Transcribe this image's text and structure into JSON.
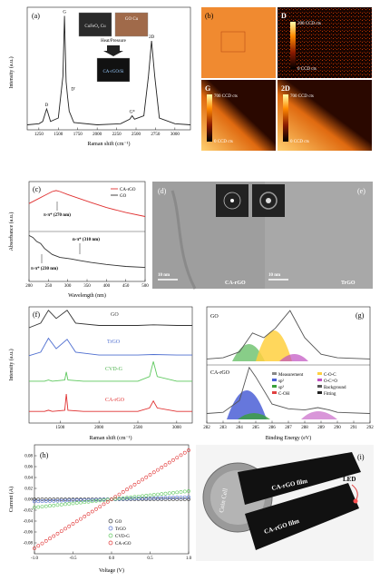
{
  "colors": {
    "cargo": "#e03030",
    "go": "#333333",
    "trgo": "#4f6fd0",
    "cvdg": "#5ec85e",
    "ink": "#222222"
  },
  "panel_a": {
    "letter": "(a)",
    "ylabel": "Intensity (a.u.)",
    "xlabel": "Raman shift (cm⁻¹)",
    "peaks": [
      {
        "label": "D",
        "x": 1350
      },
      {
        "label": "G",
        "x": 1580
      },
      {
        "label": "D'",
        "x": 1620
      },
      {
        "label": "G*",
        "x": 2450
      },
      {
        "label": "2D",
        "x": 2700
      }
    ],
    "inset": {
      "left_label": "CuFeO₂ Cu",
      "right_label": "GO Cu",
      "arrow_label": "Heat/Pressure",
      "result_label": "CA-rGO/Si"
    }
  },
  "panel_b": {
    "letter": "(b)",
    "maps": [
      {
        "label": "D",
        "scale_max": "200 CCD cts",
        "scale_min": "0 CCD cts"
      },
      {
        "label": "G",
        "scale_max": "700 CCD cts",
        "scale_min": "0 CCD cts"
      },
      {
        "label": "2D",
        "scale_max": "700 CCD cts",
        "scale_min": "0 CCD cts"
      }
    ]
  },
  "panel_c": {
    "letter": "(c)",
    "ylabel": "Absorbance (a.u.)",
    "xlabel": "Wavelength (nm)",
    "annotations": {
      "cargo_peak": "π-π* (270 nm)",
      "go_peak1": "n-π* (310 nm)",
      "go_peak2": "π-π* (230 nm)"
    }
  },
  "panel_de": {
    "d_letter": "(d)",
    "e_letter": "(e)",
    "d_scale": "10 nm",
    "e_scale": "10 nm",
    "d_label": "CA-rGO",
    "e_label": "TrGO"
  },
  "panel_f": {
    "letter": "(f)",
    "ylabel": "Intensity (a.u.)",
    "xlabel": "Raman shift (cm⁻¹)"
  },
  "panel_g": {
    "letter": "(g)",
    "xlabel": "Binding Energy (eV)",
    "top_label": "GO",
    "bottom_label": "CA-rGO",
    "legend": [
      "Measurement",
      "sp²",
      "sp³",
      "C-OH",
      "C-O-C",
      "O-C=O",
      "Background",
      "Fitting"
    ]
  },
  "panel_h": {
    "letter": "(h)"
  },
  "panel_i": {
    "letter": "(i)",
    "coin_label": "Coin Cell",
    "film_top": "CA-rGO film",
    "film_bottom": "CA-rGO film",
    "led_label": "LED"
  },
  "chart_data": [
    {
      "type": "line",
      "panel": "a",
      "xlabel": "Raman shift (cm⁻¹)",
      "ylabel": "Intensity (a.u.)",
      "xlim": [
        1100,
        3200
      ],
      "xticks": [
        1250,
        1500,
        1750,
        2000,
        2250,
        2500,
        2750,
        3000
      ],
      "series": [
        {
          "name": "",
          "x": [
            1100,
            1250,
            1300,
            1340,
            1350,
            1360,
            1400,
            1500,
            1560,
            1580,
            1600,
            1620,
            1640,
            1700,
            2000,
            2300,
            2420,
            2450,
            2480,
            2600,
            2660,
            2700,
            2740,
            2800,
            3000,
            3200
          ],
          "y": [
            0.02,
            0.03,
            0.05,
            0.14,
            0.16,
            0.14,
            0.05,
            0.08,
            0.45,
            0.98,
            0.4,
            0.26,
            0.14,
            0.04,
            0.02,
            0.03,
            0.07,
            0.1,
            0.07,
            0.1,
            0.45,
            0.76,
            0.45,
            0.08,
            0.03,
            0.02
          ]
        }
      ]
    },
    {
      "type": "line",
      "panel": "c",
      "xlabel": "Wavelength (nm)",
      "ylabel": "Absorbance (a.u.)",
      "xlim": [
        200,
        500
      ],
      "xticks": [
        200,
        250,
        300,
        350,
        400,
        450,
        500
      ],
      "series": [
        {
          "name": "CA-rGO",
          "x": [
            200,
            220,
            240,
            260,
            270,
            280,
            300,
            330,
            360,
            400,
            450,
            500
          ],
          "y": [
            0.78,
            0.82,
            0.86,
            0.9,
            0.91,
            0.9,
            0.87,
            0.83,
            0.79,
            0.74,
            0.69,
            0.65
          ]
        },
        {
          "name": "GO",
          "x": [
            200,
            210,
            220,
            230,
            240,
            260,
            280,
            300,
            310,
            330,
            360,
            400,
            450,
            500
          ],
          "y": [
            0.46,
            0.44,
            0.4,
            0.38,
            0.33,
            0.27,
            0.24,
            0.23,
            0.225,
            0.21,
            0.19,
            0.17,
            0.15,
            0.14
          ]
        }
      ]
    },
    {
      "type": "line",
      "panel": "f",
      "xlabel": "Raman shift (cm⁻¹)",
      "ylabel": "Intensity (a.u.)",
      "xlim": [
        1100,
        3200
      ],
      "xticks": [
        1500,
        2000,
        2500,
        3000
      ],
      "series": [
        {
          "name": "GO",
          "x": [
            1100,
            1250,
            1350,
            1450,
            1590,
            1700,
            2000,
            2500,
            2700,
            3000,
            3200
          ],
          "y": [
            0.82,
            0.86,
            0.97,
            0.9,
            0.97,
            0.86,
            0.84,
            0.84,
            0.845,
            0.84,
            0.84
          ]
        },
        {
          "name": "TrGO",
          "x": [
            1100,
            1250,
            1350,
            1450,
            1590,
            1700,
            2000,
            2500,
            2700,
            3000,
            3200
          ],
          "y": [
            0.58,
            0.61,
            0.73,
            0.64,
            0.72,
            0.61,
            0.585,
            0.585,
            0.59,
            0.585,
            0.585
          ]
        },
        {
          "name": "CVD-G",
          "x": [
            1100,
            1300,
            1350,
            1400,
            1560,
            1580,
            1600,
            1800,
            2500,
            2650,
            2700,
            2750,
            3000,
            3200
          ],
          "y": [
            0.36,
            0.36,
            0.37,
            0.36,
            0.37,
            0.44,
            0.37,
            0.36,
            0.36,
            0.4,
            0.53,
            0.4,
            0.36,
            0.36
          ]
        },
        {
          "name": "CA-rGO",
          "x": [
            1100,
            1300,
            1350,
            1400,
            1560,
            1580,
            1600,
            1800,
            2500,
            2650,
            2700,
            2750,
            3000,
            3200
          ],
          "y": [
            0.1,
            0.1,
            0.11,
            0.1,
            0.11,
            0.25,
            0.11,
            0.1,
            0.1,
            0.13,
            0.19,
            0.13,
            0.1,
            0.1
          ]
        }
      ]
    },
    {
      "type": "line",
      "panel": "g",
      "xlabel": "Binding Energy (eV)",
      "xlim": [
        282,
        292
      ],
      "xticks": [
        282,
        283,
        284,
        285,
        286,
        287,
        288,
        289,
        290,
        291,
        292
      ],
      "series": [
        {
          "name": "GO",
          "x": [
            282,
            283,
            284,
            284.8,
            285.5,
            286.2,
            287.1,
            288,
            289,
            290,
            292
          ],
          "y": [
            0.52,
            0.53,
            0.58,
            0.74,
            0.7,
            0.78,
            0.93,
            0.7,
            0.56,
            0.53,
            0.52
          ]
        },
        {
          "name": "CA-rGO",
          "x": [
            282,
            283,
            284,
            284.6,
            285,
            286,
            287,
            288,
            288.8,
            289.5,
            290,
            292
          ],
          "y": [
            0.05,
            0.06,
            0.16,
            0.44,
            0.36,
            0.13,
            0.09,
            0.08,
            0.1,
            0.08,
            0.06,
            0.05
          ]
        }
      ]
    },
    {
      "type": "line",
      "panel": "h",
      "xlabel": "Voltage (V)",
      "ylabel": "Current (A)",
      "xlim": [
        -1.0,
        1.0
      ],
      "ylim": [
        -0.1,
        0.1
      ],
      "xticks": [
        -1.0,
        -0.5,
        0.0,
        0.5,
        1.0
      ],
      "yticks": [
        -0.08,
        -0.06,
        -0.04,
        -0.02,
        0.0,
        0.02,
        0.04,
        0.06,
        0.08
      ],
      "series": [
        {
          "name": "GO",
          "x": [
            -1,
            -0.5,
            0,
            0.5,
            1
          ],
          "y": [
            0,
            0,
            0,
            0,
            0
          ]
        },
        {
          "name": "TrGO",
          "x": [
            -1,
            -0.5,
            0,
            0.5,
            1
          ],
          "y": [
            -0.004,
            -0.002,
            0,
            0.002,
            0.004
          ]
        },
        {
          "name": "CVD-G",
          "x": [
            -1,
            -0.5,
            0,
            0.5,
            1
          ],
          "y": [
            -0.015,
            -0.0075,
            0,
            0.0075,
            0.015
          ]
        },
        {
          "name": "CA-rGO",
          "x": [
            -1,
            -0.5,
            0,
            0.5,
            1
          ],
          "y": [
            -0.09,
            -0.045,
            0,
            0.045,
            0.09
          ]
        }
      ]
    }
  ]
}
